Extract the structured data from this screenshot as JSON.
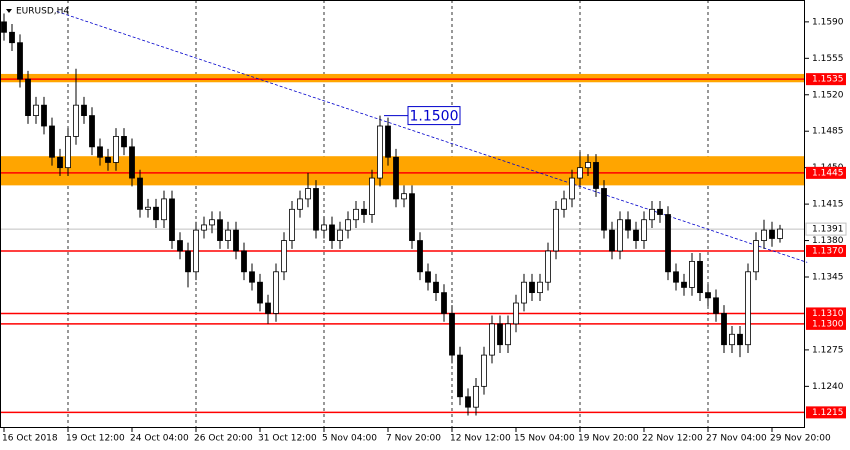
{
  "chart_data": {
    "type": "candlestick",
    "title": "EURUSD,H4",
    "categories": [
      "16 Oct 2018",
      null,
      null,
      null,
      null,
      null,
      null,
      null,
      "19 Oct 12:00",
      null,
      null,
      null,
      null,
      null,
      null,
      null,
      "24 Oct 04:00",
      null,
      null,
      null,
      null,
      null,
      null,
      null,
      "26 Oct 20:00",
      null,
      null,
      null,
      null,
      null,
      null,
      null,
      "31 Oct 12:00",
      null,
      null,
      null,
      null,
      null,
      null,
      null,
      "5 Nov 04:00",
      null,
      null,
      null,
      null,
      null,
      null,
      null,
      "7 Nov 20:00",
      null,
      null,
      null,
      null,
      null,
      null,
      null,
      "12 Nov 12:00",
      null,
      null,
      null,
      null,
      null,
      null,
      null,
      "15 Nov 04:00",
      null,
      null,
      null,
      null,
      null,
      null,
      null,
      "19 Nov 20:00",
      null,
      null,
      null,
      null,
      null,
      null,
      null,
      "22 Nov 12:00",
      null,
      null,
      null,
      null,
      null,
      null,
      null,
      "27 Nov 04:00",
      null,
      null,
      null,
      null,
      null,
      null,
      null,
      "29 Nov 20:00",
      null
    ],
    "ohlc": [
      [
        1.159,
        1.1598,
        1.1572,
        1.158
      ],
      [
        1.158,
        1.1588,
        1.1562,
        1.157
      ],
      [
        1.157,
        1.1578,
        1.1527,
        1.1535
      ],
      [
        1.1535,
        1.1543,
        1.1492,
        1.15
      ],
      [
        1.15,
        1.1518,
        1.1492,
        1.151
      ],
      [
        1.151,
        1.1518,
        1.1482,
        1.149
      ],
      [
        1.149,
        1.1498,
        1.1452,
        1.146
      ],
      [
        1.146,
        1.1468,
        1.1442,
        1.145
      ],
      [
        1.145,
        1.1488,
        1.1442,
        1.148
      ],
      [
        1.148,
        1.1545,
        1.1472,
        1.151
      ],
      [
        1.151,
        1.1518,
        1.1492,
        1.15
      ],
      [
        1.15,
        1.1508,
        1.1462,
        1.147
      ],
      [
        1.147,
        1.1478,
        1.1452,
        1.146
      ],
      [
        1.146,
        1.1468,
        1.1447,
        1.1455
      ],
      [
        1.1455,
        1.1488,
        1.1447,
        1.148
      ],
      [
        1.148,
        1.1488,
        1.1462,
        1.147
      ],
      [
        1.147,
        1.1478,
        1.1432,
        1.144
      ],
      [
        1.144,
        1.1448,
        1.1402,
        1.141
      ],
      [
        1.141,
        1.142,
        1.1402,
        1.1412
      ],
      [
        1.1412,
        1.142,
        1.1392,
        1.14
      ],
      [
        1.14,
        1.1428,
        1.1392,
        1.142
      ],
      [
        1.142,
        1.1428,
        1.1372,
        1.138
      ],
      [
        1.138,
        1.1388,
        1.1362,
        1.137
      ],
      [
        1.137,
        1.1378,
        1.1335,
        1.135
      ],
      [
        1.135,
        1.1398,
        1.1342,
        1.139
      ],
      [
        1.139,
        1.1403,
        1.1382,
        1.1395
      ],
      [
        1.1395,
        1.1408,
        1.1387,
        1.14
      ],
      [
        1.14,
        1.1408,
        1.1372,
        1.138
      ],
      [
        1.138,
        1.1398,
        1.1372,
        1.139
      ],
      [
        1.139,
        1.1398,
        1.1362,
        1.137
      ],
      [
        1.137,
        1.1378,
        1.1342,
        1.135
      ],
      [
        1.135,
        1.1358,
        1.1332,
        1.134
      ],
      [
        1.134,
        1.1348,
        1.1312,
        1.132
      ],
      [
        1.132,
        1.1328,
        1.13,
        1.131
      ],
      [
        1.131,
        1.1358,
        1.1302,
        1.135
      ],
      [
        1.135,
        1.1388,
        1.1342,
        1.138
      ],
      [
        1.138,
        1.1418,
        1.1372,
        1.141
      ],
      [
        1.141,
        1.1428,
        1.1402,
        1.142
      ],
      [
        1.142,
        1.1445,
        1.1412,
        1.143
      ],
      [
        1.143,
        1.1438,
        1.1382,
        1.139
      ],
      [
        1.139,
        1.1403,
        1.1382,
        1.1395
      ],
      [
        1.1395,
        1.1403,
        1.1372,
        1.138
      ],
      [
        1.138,
        1.1398,
        1.1372,
        1.139
      ],
      [
        1.139,
        1.1408,
        1.1382,
        1.14
      ],
      [
        1.14,
        1.1418,
        1.1392,
        1.141
      ],
      [
        1.141,
        1.1418,
        1.1397,
        1.1405
      ],
      [
        1.1405,
        1.1448,
        1.1397,
        1.144
      ],
      [
        1.144,
        1.15,
        1.1432,
        1.149
      ],
      [
        1.149,
        1.1498,
        1.1452,
        1.146
      ],
      [
        1.146,
        1.1468,
        1.1412,
        1.142
      ],
      [
        1.142,
        1.1433,
        1.1412,
        1.1425
      ],
      [
        1.1425,
        1.1433,
        1.1372,
        1.138
      ],
      [
        1.138,
        1.1388,
        1.1342,
        1.135
      ],
      [
        1.135,
        1.1358,
        1.1332,
        1.134
      ],
      [
        1.134,
        1.1348,
        1.1322,
        1.133
      ],
      [
        1.133,
        1.1338,
        1.1302,
        1.131
      ],
      [
        1.131,
        1.1318,
        1.1262,
        1.127
      ],
      [
        1.127,
        1.1278,
        1.1222,
        1.123
      ],
      [
        1.123,
        1.1238,
        1.1212,
        1.122
      ],
      [
        1.122,
        1.1248,
        1.1212,
        1.124
      ],
      [
        1.124,
        1.1278,
        1.1232,
        1.127
      ],
      [
        1.127,
        1.1308,
        1.1262,
        1.13
      ],
      [
        1.13,
        1.1308,
        1.1272,
        1.128
      ],
      [
        1.128,
        1.1308,
        1.1272,
        1.13
      ],
      [
        1.13,
        1.1328,
        1.1292,
        1.132
      ],
      [
        1.132,
        1.1348,
        1.1312,
        1.134
      ],
      [
        1.134,
        1.1348,
        1.1322,
        1.133
      ],
      [
        1.133,
        1.1348,
        1.1322,
        1.134
      ],
      [
        1.134,
        1.1378,
        1.1332,
        1.137
      ],
      [
        1.137,
        1.1418,
        1.1362,
        1.141
      ],
      [
        1.141,
        1.1428,
        1.1402,
        1.142
      ],
      [
        1.142,
        1.1448,
        1.1412,
        1.144
      ],
      [
        1.144,
        1.1465,
        1.1432,
        1.145
      ],
      [
        1.145,
        1.1463,
        1.1442,
        1.1455
      ],
      [
        1.1455,
        1.1463,
        1.1422,
        1.143
      ],
      [
        1.143,
        1.1438,
        1.1382,
        1.139
      ],
      [
        1.139,
        1.1398,
        1.1362,
        1.137
      ],
      [
        1.137,
        1.1408,
        1.1362,
        1.14
      ],
      [
        1.14,
        1.1408,
        1.1382,
        1.139
      ],
      [
        1.139,
        1.1398,
        1.1372,
        1.138
      ],
      [
        1.138,
        1.1408,
        1.1372,
        1.14
      ],
      [
        1.14,
        1.1418,
        1.1392,
        1.141
      ],
      [
        1.141,
        1.1418,
        1.1397,
        1.1405
      ],
      [
        1.1405,
        1.1413,
        1.1342,
        1.135
      ],
      [
        1.135,
        1.1358,
        1.1332,
        1.134
      ],
      [
        1.134,
        1.1348,
        1.1327,
        1.1335
      ],
      [
        1.1335,
        1.1368,
        1.1327,
        1.136
      ],
      [
        1.136,
        1.1368,
        1.1322,
        1.133
      ],
      [
        1.133,
        1.1338,
        1.1317,
        1.1325
      ],
      [
        1.1325,
        1.1333,
        1.1302,
        1.131
      ],
      [
        1.131,
        1.1318,
        1.1272,
        1.128
      ],
      [
        1.128,
        1.1298,
        1.1272,
        1.129
      ],
      [
        1.129,
        1.1298,
        1.1268,
        1.128
      ],
      [
        1.128,
        1.1358,
        1.1272,
        1.135
      ],
      [
        1.135,
        1.1388,
        1.1342,
        1.138
      ],
      [
        1.138,
        1.14,
        1.1372,
        1.139
      ],
      [
        1.139,
        1.1398,
        1.1374,
        1.1382
      ],
      [
        1.1382,
        1.1395,
        1.1378,
        1.1391
      ]
    ],
    "ylim": [
      1.12,
      1.1611
    ],
    "yticks": [
      {
        "value": 1.159,
        "label": "1.1590"
      },
      {
        "value": 1.1555,
        "label": "1.1555"
      },
      {
        "value": 1.152,
        "label": "1.1520"
      },
      {
        "value": 1.1485,
        "label": "1.1485"
      },
      {
        "value": 1.145,
        "label": "1.1450"
      },
      {
        "value": 1.1415,
        "label": "1.1415"
      },
      {
        "value": 1.138,
        "label": "1.1380"
      },
      {
        "value": 1.1345,
        "label": "1.1345"
      },
      {
        "value": 1.1275,
        "label": "1.1275"
      },
      {
        "value": 1.124,
        "label": "1.1240"
      }
    ],
    "levels": [
      {
        "value": 1.1535,
        "label": "1.1535"
      },
      {
        "value": 1.1445,
        "label": "1.1445"
      },
      {
        "value": 1.137,
        "label": "1.1370"
      },
      {
        "value": 1.131,
        "label": "1.1310"
      },
      {
        "value": 1.13,
        "label": "1.1300"
      },
      {
        "value": 1.1215,
        "label": "1.1215"
      }
    ],
    "zones": [
      [
        1.1532,
        1.154
      ],
      [
        1.1433,
        1.1461
      ]
    ],
    "current_price": {
      "value": 1.1391,
      "label": "1.1391"
    },
    "trendline": {
      "x": [
        6.6,
        100.4
      ],
      "y": [
        1.16,
        1.1359
      ]
    },
    "annotation": {
      "value": 1.15,
      "label": "1.1500"
    },
    "level_color": "#ff0000",
    "zone_color": "#ffa500",
    "trend_color": "#0000cc"
  }
}
